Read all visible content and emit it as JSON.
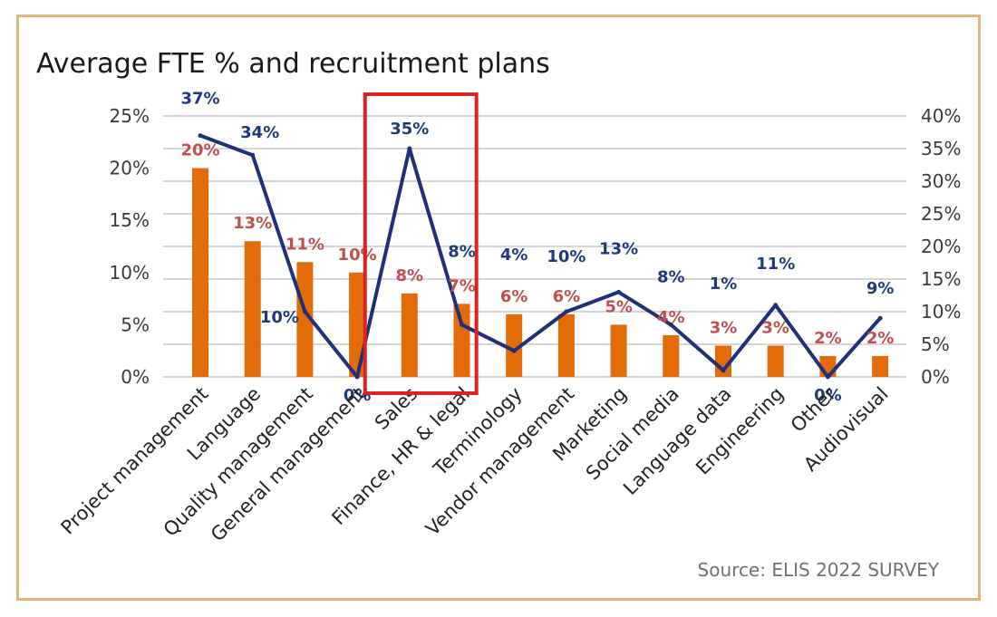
{
  "colors": {
    "border": "#e2b57e",
    "bar": "#e36c09",
    "bar_label": "#c0504d",
    "line": "#1f2f78",
    "line_label": "#1f3a7a",
    "highlight": "#e02020",
    "grid": "#c8c8c8"
  },
  "chart_data": {
    "type": "bar",
    "title": "Average FTE % and recruitment plans",
    "source": "Source: ELIS 2022 SURVEY",
    "categories": [
      "Project management",
      "Language",
      "Quality management",
      "General management",
      "Sales",
      "Finance, HR & legal",
      "Terminology",
      "Vendor management",
      "Marketing",
      "Social media",
      "Language data",
      "Engineering",
      "Other",
      "Audiovisual"
    ],
    "series": [
      {
        "type": "bar",
        "axis": "left",
        "values": [
          20,
          13,
          11,
          10,
          8,
          7,
          6,
          6,
          5,
          4,
          3,
          3,
          2,
          2
        ],
        "labels": [
          "20%",
          "13%",
          "11%",
          "10%",
          "8%",
          "7%",
          "6%",
          "6%",
          "5%",
          "4%",
          "3%",
          "3%",
          "2%",
          "2%"
        ]
      },
      {
        "type": "line",
        "axis": "right",
        "values": [
          37,
          34,
          10,
          0,
          35,
          8,
          4,
          10,
          13,
          8,
          1,
          11,
          0,
          9
        ],
        "labels": [
          "37%",
          "34%",
          "10%",
          "0%",
          "35%",
          "8%",
          "4%",
          "10%",
          "13%",
          "8%",
          "1%",
          "11%",
          "0%",
          "9%"
        ]
      }
    ],
    "left_axis": {
      "ylim": [
        0,
        25
      ],
      "ticks": [
        "0%",
        "5%",
        "10%",
        "15%",
        "20%",
        "25%"
      ]
    },
    "right_axis": {
      "ylim": [
        0,
        40
      ],
      "ticks": [
        "0%",
        "5%",
        "10%",
        "15%",
        "20%",
        "25%",
        "30%",
        "35%",
        "40%"
      ]
    },
    "grid": true,
    "highlight": {
      "categories": [
        "Sales",
        "Finance, HR & legal"
      ]
    }
  }
}
